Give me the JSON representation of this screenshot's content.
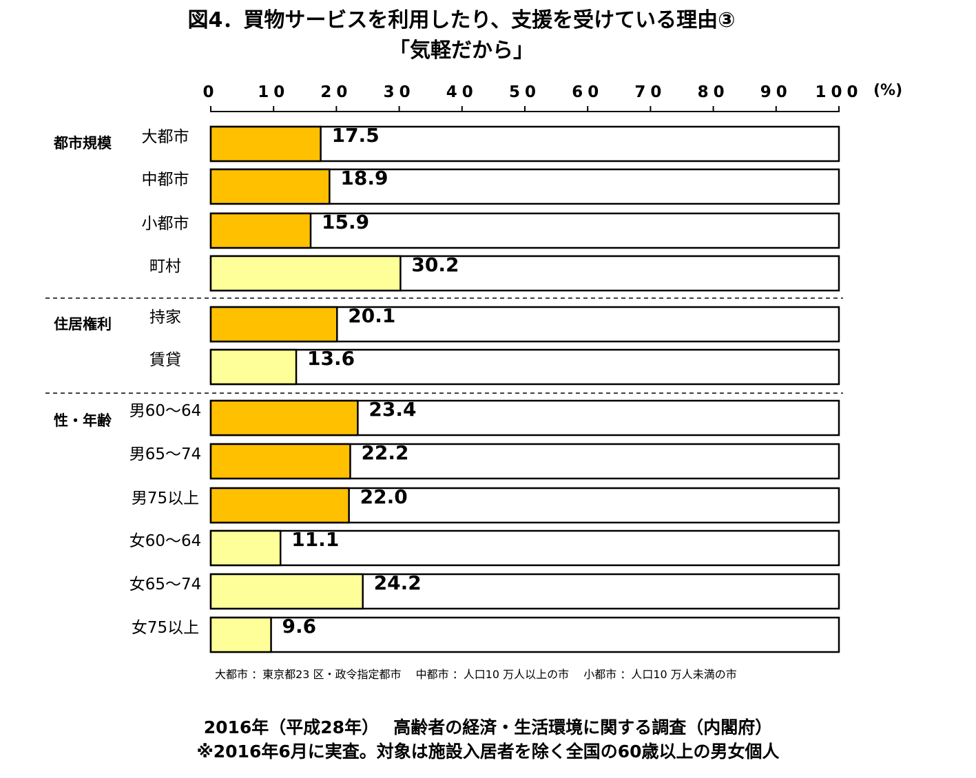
{
  "title_line1": "図4．買物サービスを利用したり、支援を受けている理由③",
  "title_line2": "「気軽だから」",
  "colors": {
    "dark_bar": "#FFC000",
    "light_bar": "#FFFF99",
    "outline": "#000000"
  },
  "chart_data": {
    "type": "bar",
    "orientation": "horizontal",
    "xlim": [
      0,
      100
    ],
    "x_ticks": [
      "0",
      "10",
      "20",
      "30",
      "40",
      "50",
      "60",
      "70",
      "80",
      "90",
      "100"
    ],
    "unit": "(%)",
    "groups": [
      {
        "label": "都市規模",
        "items": [
          {
            "label": "大都市",
            "value": 17.5,
            "value_label": "17.5",
            "shade": "dark"
          },
          {
            "label": "中都市",
            "value": 18.9,
            "value_label": "18.9",
            "shade": "dark"
          },
          {
            "label": "小都市",
            "value": 15.9,
            "value_label": "15.9",
            "shade": "dark"
          },
          {
            "label": "町村",
            "value": 30.2,
            "value_label": "30.2",
            "shade": "light"
          }
        ]
      },
      {
        "label": "住居権利",
        "items": [
          {
            "label": "持家",
            "value": 20.1,
            "value_label": "20.1",
            "shade": "dark"
          },
          {
            "label": "賃貸",
            "value": 13.6,
            "value_label": "13.6",
            "shade": "light"
          }
        ]
      },
      {
        "label": "性・年齢",
        "items": [
          {
            "label": "男60～64",
            "value": 23.4,
            "value_label": "23.4",
            "shade": "dark"
          },
          {
            "label": "男65～74",
            "value": 22.2,
            "value_label": "22.2",
            "shade": "dark"
          },
          {
            "label": "男75以上",
            "value": 22.0,
            "value_label": "22.0",
            "shade": "dark"
          },
          {
            "label": "女60～64",
            "value": 11.1,
            "value_label": "11.1",
            "shade": "light"
          },
          {
            "label": "女65～74",
            "value": 24.2,
            "value_label": "24.2",
            "shade": "light"
          },
          {
            "label": "女75以上",
            "value": 9.6,
            "value_label": "9.6",
            "shade": "light"
          }
        ]
      }
    ]
  },
  "note": "大都市 ：東京都23 区・政令指定都市　 中都市 ：人口10 万人以上の市　 小都市 ：人口10 万人未満の市",
  "footer_line1": "2016年（平成28年）　 高齢者の経済・生活環境に関する調査（内閣府）",
  "footer_line2": "※2016年6月に実査。対象は施設入居者を除く全国の60歳以上の男女個人"
}
